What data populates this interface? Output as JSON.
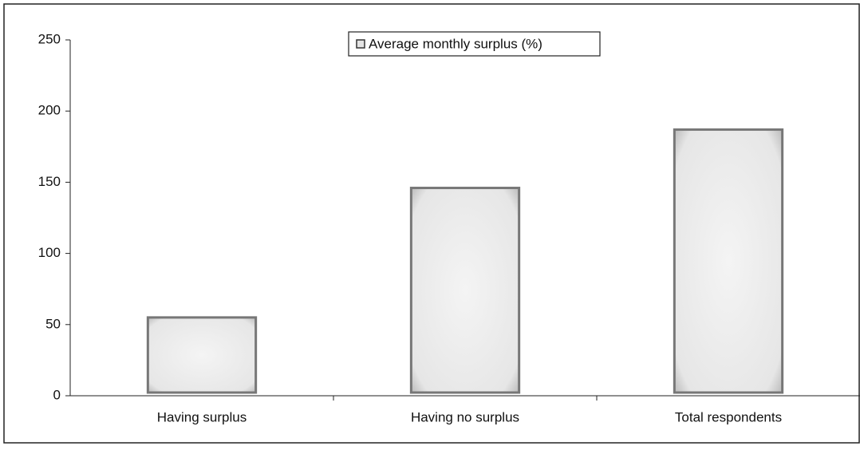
{
  "chart_data": {
    "type": "bar",
    "categories": [
      "Having surplus",
      "Having no surplus",
      "Total respondents"
    ],
    "series": [
      {
        "name": "Average monthly surplus (%)",
        "color": "#e4e4e4",
        "values": [
          55,
          146,
          187
        ]
      }
    ],
    "ylim": [
      0,
      250
    ],
    "yticks": [
      0,
      50,
      100,
      150,
      200,
      250
    ],
    "grid": false,
    "legend": "top"
  }
}
